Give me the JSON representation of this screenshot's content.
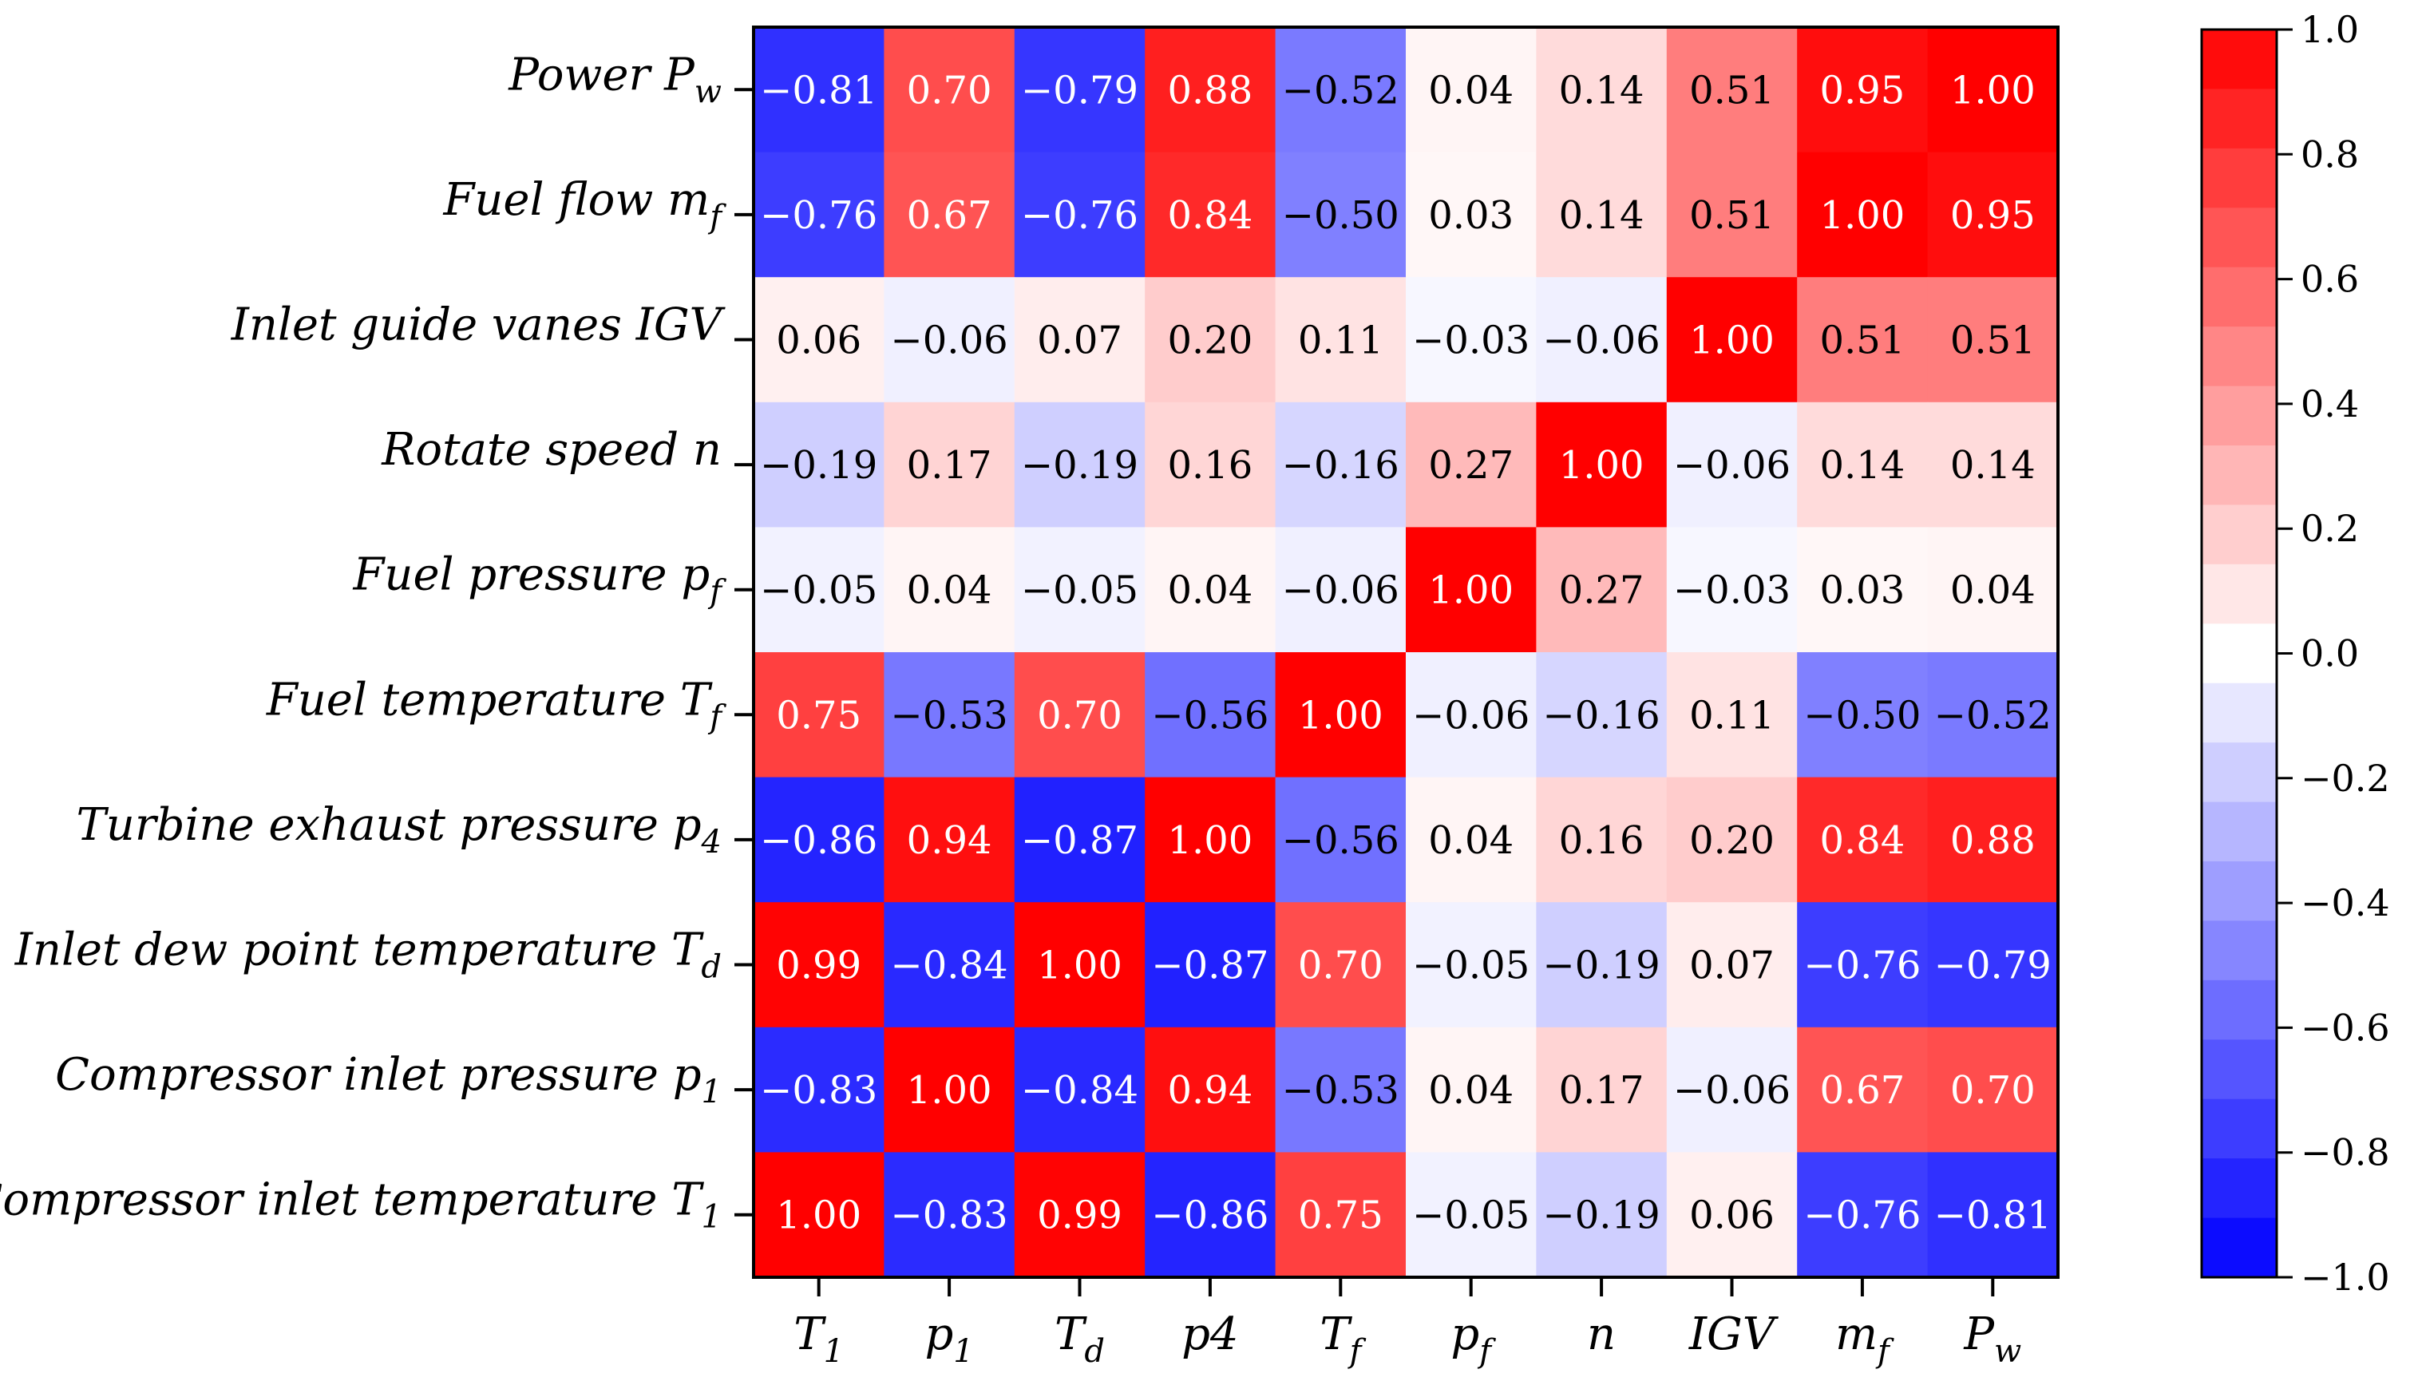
{
  "chart_data": {
    "type": "heatmap",
    "title": "",
    "rows": [
      {
        "name": "Power",
        "sym": "P",
        "sub": "w"
      },
      {
        "name": "Fuel flow",
        "sym": "m",
        "sub": "f"
      },
      {
        "name": "Inlet guide vanes",
        "sym": "IGV",
        "sub": ""
      },
      {
        "name": "Rotate speed",
        "sym": "n",
        "sub": ""
      },
      {
        "name": "Fuel pressure",
        "sym": "p",
        "sub": "f"
      },
      {
        "name": "Fuel temperature",
        "sym": "T",
        "sub": "f"
      },
      {
        "name": "Turbine exhaust pressure",
        "sym": "p",
        "sub": "4"
      },
      {
        "name": "Inlet dew point temperature",
        "sym": "T",
        "sub": "d"
      },
      {
        "name": "Compressor inlet pressure",
        "sym": "p",
        "sub": "1"
      },
      {
        "name": "Compressor inlet temperature",
        "sym": "T",
        "sub": "1"
      }
    ],
    "columns": [
      {
        "sym": "T",
        "sub": "1"
      },
      {
        "sym": "p",
        "sub": "1"
      },
      {
        "sym": "T",
        "sub": "d"
      },
      {
        "sym": "p4",
        "sub": ""
      },
      {
        "sym": "T",
        "sub": "f"
      },
      {
        "sym": "p",
        "sub": "f"
      },
      {
        "sym": "n",
        "sub": ""
      },
      {
        "sym": "IGV",
        "sub": ""
      },
      {
        "sym": "m",
        "sub": "f"
      },
      {
        "sym": "P",
        "sub": "w"
      }
    ],
    "values": [
      [
        -0.81,
        0.7,
        -0.79,
        0.88,
        -0.52,
        0.04,
        0.14,
        0.51,
        0.95,
        1.0
      ],
      [
        -0.76,
        0.67,
        -0.76,
        0.84,
        -0.5,
        0.03,
        0.14,
        0.51,
        1.0,
        0.95
      ],
      [
        0.06,
        -0.06,
        0.07,
        0.2,
        0.11,
        -0.03,
        -0.06,
        1.0,
        0.51,
        0.51
      ],
      [
        -0.19,
        0.17,
        -0.19,
        0.16,
        -0.16,
        0.27,
        1.0,
        -0.06,
        0.14,
        0.14
      ],
      [
        -0.05,
        0.04,
        -0.05,
        0.04,
        -0.06,
        1.0,
        0.27,
        -0.03,
        0.03,
        0.04
      ],
      [
        0.75,
        -0.53,
        0.7,
        -0.56,
        1.0,
        -0.06,
        -0.16,
        0.11,
        -0.5,
        -0.52
      ],
      [
        -0.86,
        0.94,
        -0.87,
        1.0,
        -0.56,
        0.04,
        0.16,
        0.2,
        0.84,
        0.88
      ],
      [
        0.99,
        -0.84,
        1.0,
        -0.87,
        0.7,
        -0.05,
        -0.19,
        0.07,
        -0.76,
        -0.79
      ],
      [
        -0.83,
        1.0,
        -0.84,
        0.94,
        -0.53,
        0.04,
        0.17,
        -0.06,
        0.67,
        0.7
      ],
      [
        1.0,
        -0.83,
        0.99,
        -0.86,
        0.75,
        -0.05,
        -0.19,
        0.06,
        -0.76,
        -0.81
      ]
    ],
    "colormap": {
      "low": "#0000ff",
      "mid": "#ffffff",
      "high": "#ff0000"
    },
    "vmin": -1.0,
    "vmax": 1.0,
    "colorbar_ticks": [
      1.0,
      0.8,
      0.6,
      0.4,
      0.2,
      0.0,
      -0.2,
      -0.4,
      -0.6,
      -0.8,
      -1.0
    ],
    "colorbar_levels": 21
  }
}
